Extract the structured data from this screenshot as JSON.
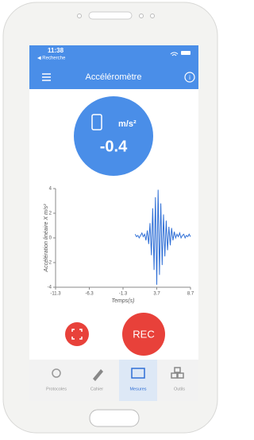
{
  "status_bar": {
    "time": "11:38",
    "back": "◀ Recherche"
  },
  "app_bar": {
    "title": "Accéléromètre"
  },
  "gauge": {
    "unit": "m/s²",
    "value": -0.4
  },
  "chart": {
    "type": "line",
    "y_label": "Accélération linéaire X  m/s²",
    "x_label": "Temps(s)",
    "color": "#2f6fd6",
    "x": [
      0.5,
      0.7,
      0.9,
      1.1,
      1.3,
      1.5,
      1.7,
      1.9,
      2.1,
      2.3,
      2.5,
      2.7,
      2.9,
      3.1,
      3.3,
      3.5,
      3.7,
      3.9,
      4.1,
      4.3,
      4.5,
      4.7,
      4.9,
      5.1,
      5.3,
      5.5,
      5.7,
      5.9,
      6.1,
      6.3,
      6.5,
      6.7,
      6.9,
      7.1,
      7.3,
      7.5,
      7.7,
      7.9,
      8.1,
      8.3,
      8.5,
      8.7
    ],
    "values": [
      0.3,
      0.1,
      0.2,
      0.0,
      0.2,
      0.4,
      0.1,
      0.3,
      -0.2,
      0.6,
      -0.5,
      1.2,
      -1.4,
      2.4,
      -2.6,
      3.3,
      -3.8,
      3.9,
      -3.0,
      2.8,
      -2.2,
      1.9,
      -1.5,
      1.4,
      -1.0,
      0.9,
      -0.6,
      0.8,
      -0.2,
      0.5,
      0.0,
      0.3,
      0.1,
      0.4,
      0.0,
      0.2,
      0.3,
      0.0,
      0.2,
      0.1,
      0.3,
      0.1
    ],
    "xlim": [
      -11.3,
      8.7
    ],
    "ylim": [
      -4,
      4
    ],
    "xticks": [
      -11.3,
      -6.3,
      -1.3,
      3.7,
      8.7
    ],
    "yticks": [
      4,
      2,
      0,
      -2,
      -4
    ]
  },
  "buttons": {
    "record": "REC"
  },
  "nav": [
    {
      "label": "Protocoles"
    },
    {
      "label": "Cahier"
    },
    {
      "label": "Mesures"
    },
    {
      "label": "Outils"
    }
  ]
}
